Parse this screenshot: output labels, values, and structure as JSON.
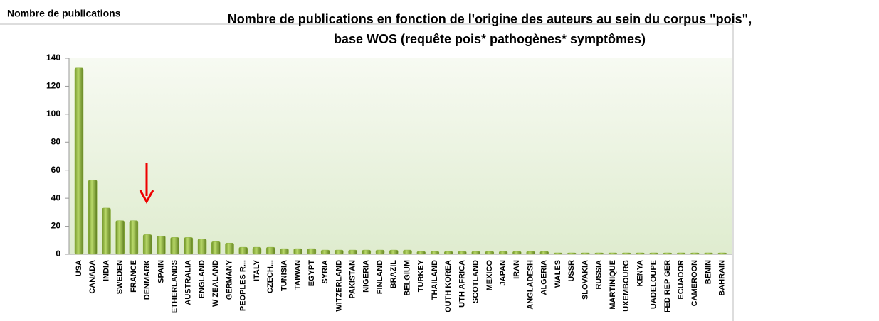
{
  "chart_data": {
    "type": "bar",
    "title": [
      "Nombre de publications en fonction de l'origine des auteurs au sein du corpus \"pois\",",
      "base WOS (requête pois* pathogènes* symptômes)"
    ],
    "y_label": "Nombre de publications",
    "categories": [
      "USA",
      "CANADA",
      "INDIA",
      "SWEDEN",
      "FRANCE",
      "DENMARK",
      "SPAIN",
      "ETHERLANDS",
      "AUSTRALIA",
      "ENGLAND",
      "W ZEALAND",
      "GERMANY",
      "PEOPLES R...",
      "ITALY",
      "CZECH...",
      "TUNISIA",
      "TAIWAN",
      "EGYPT",
      "SYRIA",
      "WITZERLAND",
      "PAKISTAN",
      "NIGERIA",
      "FINLAND",
      "BRAZIL",
      "BELGIUM",
      "TURKEY",
      "THAILAND",
      "OUTH KOREA",
      "UTH AFRICA",
      "SCOTLAND",
      "MEXICO",
      "JAPAN",
      "IRAN",
      "ANGLADESH",
      "ALGERIA",
      "WALES",
      "USSR",
      "SLOVAKIA",
      "RUSSIA",
      "MARTINIQUE",
      "UXEMBOURG",
      "KENYA",
      "UADELOUPE",
      "FED REP GER",
      "ECUADOR",
      "CAMEROON",
      "BENIN",
      "BAHRAIN"
    ],
    "values": [
      133,
      53,
      33,
      24,
      24,
      14,
      13,
      12,
      12,
      11,
      9,
      8,
      5,
      5,
      5,
      4,
      4,
      4,
      3,
      3,
      3,
      3,
      3,
      3,
      3,
      2,
      2,
      2,
      2,
      2,
      2,
      2,
      2,
      2,
      2,
      1,
      1,
      1,
      1,
      1,
      1,
      1,
      1,
      1,
      1,
      1,
      1,
      1
    ],
    "color": "#8db33a",
    "ylim": [
      0,
      140
    ],
    "yticks": [
      0,
      20,
      40,
      60,
      80,
      100,
      120,
      140
    ]
  }
}
